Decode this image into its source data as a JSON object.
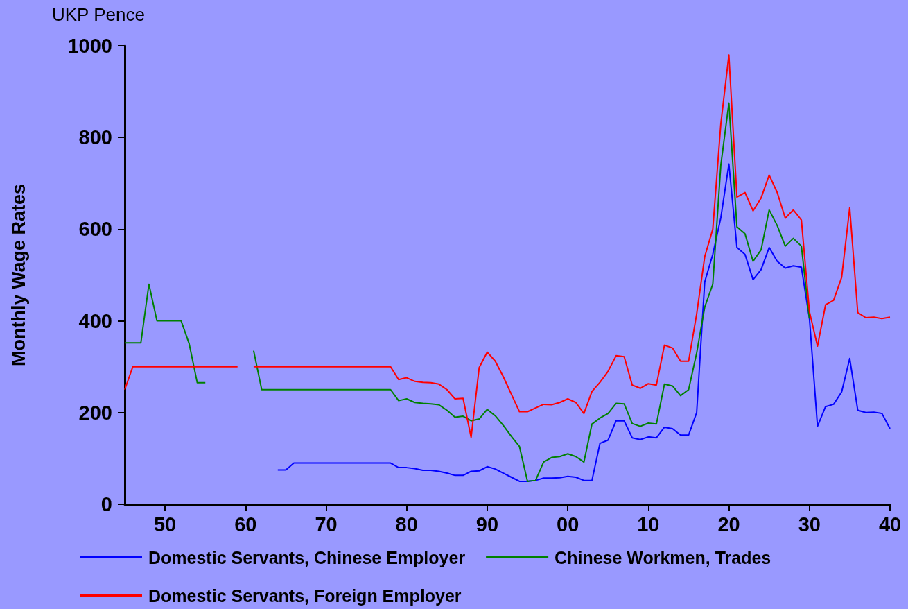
{
  "chart_data": {
    "type": "line",
    "ylabel": "Monthly Wage Rates",
    "annotations": [
      "UKP Pence"
    ],
    "x": [
      1845,
      1846,
      1847,
      1848,
      1849,
      1850,
      1851,
      1852,
      1853,
      1854,
      1855,
      1856,
      1857,
      1858,
      1859,
      1860,
      1861,
      1862,
      1863,
      1864,
      1865,
      1866,
      1867,
      1868,
      1869,
      1870,
      1871,
      1872,
      1873,
      1874,
      1875,
      1876,
      1877,
      1878,
      1879,
      1880,
      1881,
      1882,
      1883,
      1884,
      1885,
      1886,
      1887,
      1888,
      1889,
      1890,
      1891,
      1892,
      1893,
      1894,
      1895,
      1896,
      1897,
      1898,
      1899,
      1900,
      1901,
      1902,
      1903,
      1904,
      1905,
      1906,
      1907,
      1908,
      1909,
      1910,
      1911,
      1912,
      1913,
      1914,
      1915,
      1916,
      1917,
      1918,
      1919,
      1920,
      1921,
      1922,
      1923,
      1924,
      1925,
      1926,
      1927,
      1928,
      1929,
      1930,
      1931,
      1932,
      1933,
      1934,
      1935,
      1936,
      1937,
      1938,
      1939,
      1940
    ],
    "series": [
      {
        "name": "Domestic Servants, Chinese Employer",
        "color": "#0000ff",
        "values": [
          null,
          null,
          null,
          null,
          null,
          null,
          null,
          null,
          null,
          null,
          null,
          null,
          null,
          null,
          null,
          null,
          null,
          null,
          null,
          75,
          75,
          90,
          90,
          90,
          90,
          90,
          90,
          90,
          90,
          90,
          90,
          90,
          90,
          90,
          80,
          80,
          78,
          74,
          74,
          72,
          68,
          63,
          63,
          72,
          73,
          82,
          77,
          68,
          59,
          50,
          50,
          52,
          57,
          57,
          58,
          61,
          59,
          52,
          52,
          133,
          140,
          182,
          182,
          145,
          141,
          147,
          145,
          168,
          165,
          151,
          151,
          200,
          485,
          545,
          625,
          742,
          560,
          545,
          490,
          512,
          560,
          530,
          515,
          520,
          517,
          405,
          170,
          213,
          218,
          245,
          318,
          205,
          200,
          201,
          198,
          165
        ]
      },
      {
        "name": "Chinese Workmen, Trades",
        "color": "#008000",
        "values": [
          352,
          352,
          352,
          480,
          400,
          400,
          400,
          400,
          350,
          265,
          265,
          null,
          null,
          null,
          null,
          null,
          335,
          250,
          250,
          250,
          250,
          250,
          250,
          250,
          250,
          250,
          250,
          250,
          250,
          250,
          250,
          250,
          250,
          250,
          226,
          230,
          222,
          220,
          219,
          217,
          205,
          190,
          192,
          182,
          186,
          207,
          193,
          172,
          148,
          126,
          50,
          52,
          92,
          102,
          104,
          110,
          104,
          92,
          175,
          188,
          198,
          220,
          219,
          176,
          170,
          177,
          175,
          262,
          258,
          237,
          250,
          330,
          430,
          480,
          740,
          875,
          605,
          590,
          530,
          555,
          642,
          608,
          563,
          580,
          563,
          405,
          null,
          null,
          null,
          null,
          null,
          null,
          null,
          null,
          null,
          null
        ]
      },
      {
        "name": "Domestic Servants, Foreign Employer",
        "color": "#ff0000",
        "values": [
          250,
          300,
          300,
          300,
          300,
          300,
          300,
          300,
          300,
          300,
          300,
          300,
          300,
          300,
          300,
          null,
          300,
          300,
          300,
          300,
          300,
          300,
          300,
          300,
          300,
          300,
          300,
          300,
          300,
          300,
          300,
          300,
          300,
          300,
          272,
          276,
          268,
          266,
          265,
          262,
          250,
          230,
          231,
          146,
          298,
          332,
          312,
          278,
          240,
          202,
          202,
          210,
          218,
          217,
          222,
          230,
          222,
          198,
          246,
          266,
          290,
          324,
          322,
          260,
          253,
          263,
          260,
          347,
          341,
          312,
          312,
          415,
          540,
          600,
          830,
          980,
          670,
          680,
          640,
          668,
          718,
          680,
          624,
          642,
          620,
          420,
          345,
          435,
          445,
          495,
          647,
          418,
          407,
          408,
          405,
          408
        ]
      }
    ],
    "xlim": [
      1845,
      1940
    ],
    "xticks": [
      {
        "value": 1850,
        "label": "50"
      },
      {
        "value": 1860,
        "label": "60"
      },
      {
        "value": 1870,
        "label": "70"
      },
      {
        "value": 1880,
        "label": "80"
      },
      {
        "value": 1890,
        "label": "90"
      },
      {
        "value": 1900,
        "label": "00"
      },
      {
        "value": 1910,
        "label": "10"
      },
      {
        "value": 1920,
        "label": "20"
      },
      {
        "value": 1930,
        "label": "30"
      },
      {
        "value": 1940,
        "label": "40"
      }
    ],
    "ylim": [
      0,
      1000
    ],
    "yticks": [
      0,
      200,
      400,
      600,
      800,
      1000
    ],
    "grid": false,
    "legend": "bottom",
    "marker": "none",
    "line_style": "solid"
  }
}
